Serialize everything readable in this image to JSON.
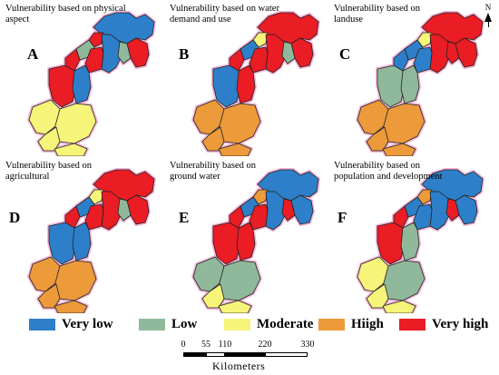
{
  "panels": [
    {
      "id": "A",
      "letter": "A",
      "title": "Vulnerability based on physical aspect",
      "classes": [
        "blue",
        "red",
        "blue",
        "red",
        "green",
        "green",
        "red",
        "red",
        "red",
        "blue",
        "yellow",
        "yellow",
        "yellow",
        "yellow"
      ]
    },
    {
      "id": "B",
      "letter": "B",
      "title": "Vulnerability based on water demand and use",
      "classes": [
        "red",
        "yellow",
        "red",
        "red",
        "green",
        "blue",
        "red",
        "red",
        "blue",
        "red",
        "orange",
        "orange",
        "orange",
        "orange"
      ]
    },
    {
      "id": "C",
      "letter": "C",
      "title": "Vulnerability based on landuse",
      "classes": [
        "red",
        "yellow",
        "red",
        "red",
        "red",
        "blue",
        "blue",
        "blue",
        "green",
        "green",
        "orange",
        "orange",
        "orange",
        "orange"
      ]
    },
    {
      "id": "D",
      "letter": "D",
      "title": "Vulnerability based on agricultural",
      "classes": [
        "red",
        "yellow",
        "red",
        "red",
        "green",
        "blue",
        "red",
        "red",
        "blue",
        "blue",
        "orange",
        "orange",
        "orange",
        "orange"
      ]
    },
    {
      "id": "E",
      "letter": "E",
      "title": "Vulnerability based on ground water",
      "classes": [
        "blue",
        "orange",
        "blue",
        "blue",
        "red",
        "blue",
        "red",
        "red",
        "red",
        "red",
        "green",
        "green",
        "yellow",
        "yellow"
      ]
    },
    {
      "id": "F",
      "letter": "F",
      "title": "Vulnerability based on population and development",
      "classes": [
        "blue",
        "orange",
        "blue",
        "blue",
        "red",
        "blue",
        "blue",
        "red",
        "red",
        "green",
        "yellow",
        "green",
        "yellow",
        "yellow"
      ]
    }
  ],
  "north_label": "N",
  "legend": [
    {
      "key": "blue",
      "label": "Very low",
      "color": "#2e7fc9"
    },
    {
      "key": "green",
      "label": "Low",
      "color": "#8fb99a"
    },
    {
      "key": "yellow",
      "label": "Moderate",
      "color": "#f7f47a"
    },
    {
      "key": "orange",
      "label": "Hiigh",
      "color": "#ec9a3a"
    },
    {
      "key": "red",
      "label": "Very high",
      "color": "#ea1c24"
    }
  ],
  "scale": {
    "ticks": [
      "0",
      "55",
      "110",
      "220",
      "330"
    ],
    "values": [
      0,
      55,
      110,
      220,
      330
    ],
    "unit": "Kilometers"
  }
}
